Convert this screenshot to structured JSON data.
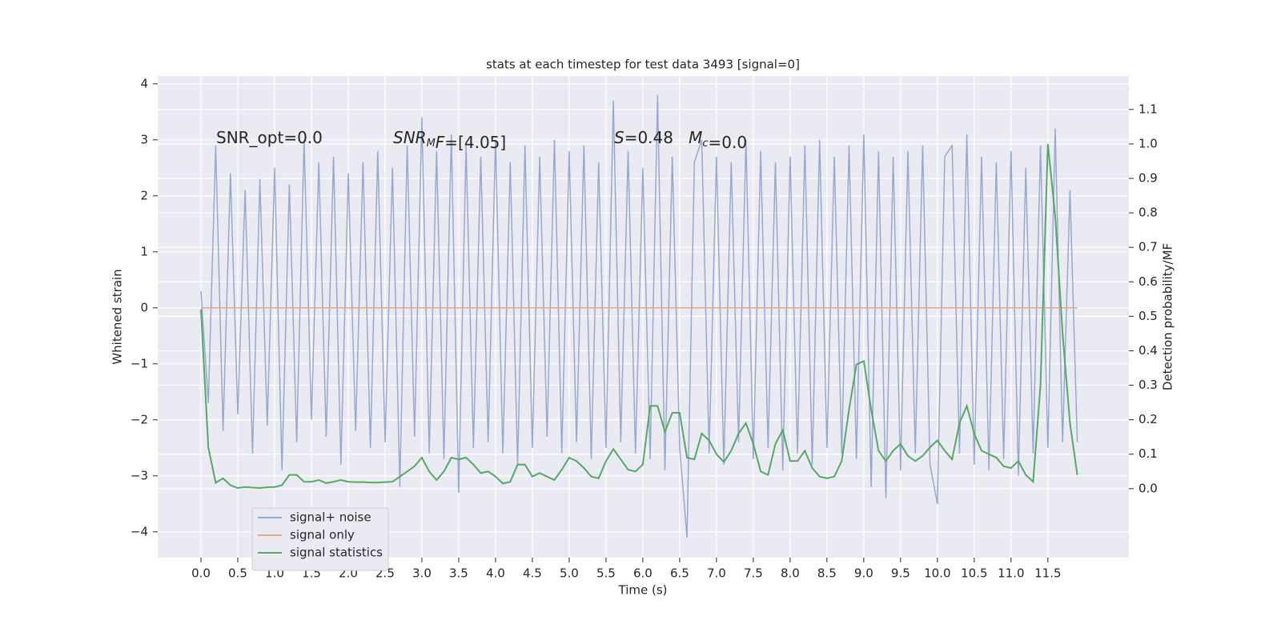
{
  "chart_data": {
    "type": "line",
    "title": "stats at each timestep for test data 3493 [signal=0]",
    "x_label": "Time (s)",
    "y_label": "Whitened strain",
    "y2_label": "Detection probability/MF",
    "grid": true,
    "legend": "lower left",
    "xlim": [
      -0.587,
      12.6
    ],
    "ylim": [
      -4.46,
      4.14
    ],
    "y2lim": [
      -0.2,
      1.197
    ],
    "xticks": [
      {
        "value": 0,
        "label": "0.0"
      },
      0.5,
      {
        "value": 1,
        "label": "1.0"
      },
      1.5,
      {
        "value": 2,
        "label": "2.0"
      },
      2.5,
      {
        "value": 3,
        "label": "3.0"
      },
      3.5,
      {
        "value": 4,
        "label": "4.0"
      },
      4.5,
      {
        "value": 5,
        "label": "5.0"
      },
      5.5,
      {
        "value": 6,
        "label": "6.0"
      },
      6.5,
      {
        "value": 7,
        "label": "7.0"
      },
      7.5,
      {
        "value": 8,
        "label": "8.0"
      },
      8.5,
      {
        "value": 9,
        "label": "9.0"
      },
      9.5,
      {
        "value": 10,
        "label": "10.0"
      },
      10.5,
      {
        "value": 11,
        "label": "11.0"
      },
      11.5
    ],
    "yticks": [
      {
        "value": -4,
        "label": "−4"
      },
      {
        "value": -3,
        "label": "−3"
      },
      {
        "value": -2,
        "label": "−2"
      },
      {
        "value": -1,
        "label": "−1"
      },
      0,
      1,
      2,
      3,
      4
    ],
    "y2ticks": [
      {
        "value": 0,
        "label": "0.0"
      },
      0.1,
      0.2,
      0.3,
      0.4,
      0.5,
      0.6,
      0.7,
      0.8,
      0.9,
      {
        "value": 1,
        "label": "1.0"
      },
      1.1
    ],
    "annotations": [
      {
        "parts": [
          {
            "text": "SNR_opt=0.0"
          }
        ]
      },
      {
        "parts": [
          {
            "text": "SNR",
            "italic": true
          },
          {
            "text": "M",
            "italic": true,
            "sub": true
          },
          {
            "text": "F",
            "italic": true
          },
          {
            "text": "=[4.05]"
          }
        ]
      },
      {
        "parts": [
          {
            "text": "S",
            "italic": true
          },
          {
            "text": "=0.48   "
          },
          {
            "text": "M",
            "italic": true
          },
          {
            "text": "c",
            "italic": true,
            "sub": true
          },
          {
            "text": "=0.0"
          }
        ]
      }
    ],
    "x": [
      0,
      0.1,
      0.2,
      0.3,
      0.4,
      0.5,
      0.6,
      0.7,
      0.8,
      0.9,
      1,
      1.1,
      1.2,
      1.3,
      1.4,
      1.5,
      1.6,
      1.7,
      1.8,
      1.9,
      2,
      2.1,
      2.2,
      2.3,
      2.4,
      2.5,
      2.6,
      2.7,
      2.8,
      2.9,
      3,
      3.1,
      3.2,
      3.3,
      3.4,
      3.5,
      3.6,
      3.7,
      3.8,
      3.9,
      4,
      4.1,
      4.2,
      4.3,
      4.4,
      4.5,
      4.6,
      4.7,
      4.8,
      4.9,
      5,
      5.1,
      5.2,
      5.3,
      5.4,
      5.5,
      5.6,
      5.7,
      5.8,
      5.9,
      6,
      6.1,
      6.2,
      6.3,
      6.4,
      6.5,
      6.6,
      6.7,
      6.8,
      6.9,
      7,
      7.1,
      7.2,
      7.3,
      7.4,
      7.5,
      7.6,
      7.7,
      7.8,
      7.9,
      8,
      8.1,
      8.2,
      8.3,
      8.4,
      8.5,
      8.6,
      8.7,
      8.8,
      8.9,
      9,
      9.1,
      9.2,
      9.3,
      9.4,
      9.5,
      9.6,
      9.7,
      9.8,
      9.9,
      10,
      10.1,
      10.2,
      10.3,
      10.4,
      10.5,
      10.6,
      10.7,
      10.8,
      10.9,
      11,
      11.1,
      11.2,
      11.3,
      11.4,
      11.5,
      11.6,
      11.7,
      11.8,
      11.9
    ],
    "series": [
      {
        "name": "signal+ noise",
        "color": "#98a9cf",
        "axis": "y",
        "values": [
          0.3,
          -1.7,
          2.9,
          -2.2,
          2.4,
          -1.9,
          2.1,
          -2.6,
          2.3,
          -2.1,
          2.5,
          -2.9,
          2.2,
          -2.4,
          3.0,
          -2.0,
          2.6,
          -2.3,
          2.7,
          -2.8,
          2.4,
          -2.2,
          2.6,
          -2.5,
          2.8,
          -2.4,
          2.5,
          -3.2,
          2.9,
          -2.3,
          3.4,
          -2.6,
          2.8,
          -2.7,
          3.1,
          -3.3,
          2.9,
          -2.5,
          2.7,
          -2.4,
          3.0,
          -2.6,
          2.6,
          -2.8,
          2.9,
          -2.5,
          2.7,
          -2.3,
          3.0,
          -2.6,
          2.8,
          -2.4,
          2.9,
          -2.7,
          2.6,
          -2.5,
          3.7,
          -2.4,
          2.8,
          -2.6,
          2.5,
          -2.7,
          3.8,
          -2.9,
          2.7,
          -2.5,
          -4.1,
          2.6,
          3.0,
          -2.6,
          2.7,
          -2.8,
          2.6,
          -2.4,
          3.0,
          -2.7,
          2.8,
          -2.5,
          2.6,
          -2.9,
          2.7,
          -2.6,
          2.9,
          -2.8,
          3.0,
          -2.5,
          2.7,
          -2.6,
          2.9,
          -2.7,
          3.1,
          -3.2,
          2.8,
          -3.4,
          2.7,
          -2.9,
          2.8,
          -2.6,
          2.9,
          -2.8,
          -3.5,
          2.7,
          2.9,
          -2.6,
          3.1,
          -2.8,
          2.7,
          -2.9,
          2.6,
          -2.7,
          2.8,
          -3.0,
          2.5,
          -2.6,
          2.9,
          -2.5,
          3.2,
          -2.4,
          2.1,
          -2.4
        ]
      },
      {
        "name": "signal only",
        "color": "#e6a688",
        "axis": "y",
        "values": [
          0,
          0,
          0,
          0,
          0,
          0,
          0,
          0,
          0,
          0,
          0,
          0,
          0,
          0,
          0,
          0,
          0,
          0,
          0,
          0,
          0,
          0,
          0,
          0,
          0,
          0,
          0,
          0,
          0,
          0,
          0,
          0,
          0,
          0,
          0,
          0,
          0,
          0,
          0,
          0,
          0,
          0,
          0,
          0,
          0,
          0,
          0,
          0,
          0,
          0,
          0,
          0,
          0,
          0,
          0,
          0,
          0,
          0,
          0,
          0,
          0,
          0,
          0,
          0,
          0,
          0,
          0,
          0,
          0,
          0,
          0,
          0,
          0,
          0,
          0,
          0,
          0,
          0,
          0,
          0,
          0,
          0,
          0,
          0,
          0,
          0,
          0,
          0,
          0,
          0,
          0,
          0,
          0,
          0,
          0,
          0,
          0,
          0,
          0,
          0,
          0,
          0,
          0,
          0,
          0,
          0,
          0,
          0,
          0,
          0,
          0,
          0,
          0,
          0,
          0,
          0,
          0,
          0,
          0,
          0
        ]
      },
      {
        "name": "signal statistics",
        "color": "#55a868",
        "axis": "y2",
        "values": [
          0.52,
          0.12,
          0.017,
          0.03,
          0.01,
          0.002,
          0.005,
          0.003,
          0.002,
          0.004,
          0.005,
          0.01,
          0.04,
          0.04,
          0.02,
          0.02,
          0.025,
          0.016,
          0.02,
          0.025,
          0.02,
          0.019,
          0.019,
          0.018,
          0.018,
          0.019,
          0.02,
          0.035,
          0.05,
          0.065,
          0.09,
          0.05,
          0.025,
          0.05,
          0.09,
          0.085,
          0.09,
          0.07,
          0.045,
          0.05,
          0.035,
          0.015,
          0.02,
          0.07,
          0.07,
          0.035,
          0.045,
          0.035,
          0.025,
          0.055,
          0.09,
          0.08,
          0.06,
          0.035,
          0.03,
          0.08,
          0.115,
          0.085,
          0.055,
          0.05,
          0.07,
          0.24,
          0.24,
          0.165,
          0.22,
          0.22,
          0.09,
          0.085,
          0.16,
          0.14,
          0.1,
          0.077,
          0.11,
          0.16,
          0.19,
          0.13,
          0.05,
          0.04,
          0.13,
          0.17,
          0.08,
          0.08,
          0.11,
          0.06,
          0.035,
          0.03,
          0.035,
          0.08,
          0.23,
          0.36,
          0.37,
          0.23,
          0.11,
          0.08,
          0.11,
          0.13,
          0.095,
          0.08,
          0.095,
          0.12,
          0.14,
          0.11,
          0.085,
          0.19,
          0.24,
          0.16,
          0.11,
          0.1,
          0.09,
          0.065,
          0.06,
          0.08,
          0.04,
          0.02,
          0.3,
          1.0,
          0.79,
          0.45,
          0.19,
          0.04
        ]
      }
    ]
  }
}
